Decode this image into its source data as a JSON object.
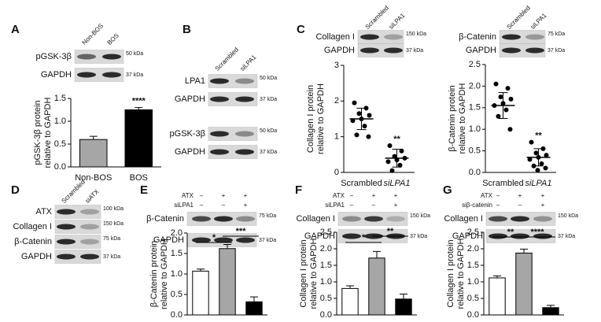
{
  "panel_labels": [
    "A",
    "B",
    "C",
    "D",
    "E",
    "F",
    "G"
  ],
  "blots": [
    {
      "columns": [
        "Non-BOS",
        "BOS"
      ],
      "rows": [
        {
          "label": "pGSK-3β",
          "kda": "50 kDa"
        },
        {
          "label": "GAPDH",
          "kda": "37 kDa"
        }
      ]
    },
    {
      "columns": [
        "Scrambled",
        "siLPA1"
      ],
      "rows": [
        {
          "label": "LPA1",
          "kda": "50 kDa"
        },
        {
          "label": "GAPDH",
          "kda": "37 kDa"
        },
        {
          "label": "pGSK-3β",
          "kda": "50 kDa"
        },
        {
          "label": "GAPDH",
          "kda": "37 kDa"
        }
      ]
    },
    {
      "columns": [
        "Scrambled",
        "siLPA1"
      ],
      "rows": [
        {
          "label": "Collagen I",
          "kda": "150 kDa"
        },
        {
          "label": "GAPDH",
          "kda": "37 kDa"
        }
      ]
    },
    {
      "columns": [
        "Scrambled",
        "siLPA1"
      ],
      "rows": [
        {
          "label": "β-Catenin",
          "kda": "75 kDa"
        },
        {
          "label": "GAPDH",
          "kda": "37 kDa"
        }
      ]
    },
    {
      "columns": [
        "Scrambled",
        "siATX"
      ],
      "rows": [
        {
          "label": "ATX",
          "kda": "100 kDa"
        },
        {
          "label": "Collagen I",
          "kda": "150 kDa"
        },
        {
          "label": "β-Catenin",
          "kda": "75 kDa"
        },
        {
          "label": "GAPDH",
          "kda": "37 kDa"
        }
      ]
    },
    {
      "conditions": [
        {
          "name": "ATX",
          "signs": [
            "–",
            "+",
            "+"
          ]
        },
        {
          "name": "siLPA1",
          "signs": [
            "–",
            "–",
            "+"
          ]
        }
      ],
      "rows": [
        {
          "label": "β-Catenin",
          "kda": "75 kDa"
        },
        {
          "label": "GAPDH",
          "kda": "37 kDa"
        }
      ]
    },
    {
      "conditions": [
        {
          "name": "ATX",
          "signs": [
            "–",
            "+",
            "+"
          ]
        },
        {
          "name": "siLPA1",
          "signs": [
            "–",
            "–",
            "+"
          ]
        }
      ],
      "rows": [
        {
          "label": "Collagen I",
          "kda": "150 kDa"
        },
        {
          "label": "GAPDH",
          "kda": "37 kDa"
        }
      ]
    },
    {
      "conditions": [
        {
          "name": "ATX",
          "signs": [
            "–",
            "+",
            "+"
          ]
        },
        {
          "name": "siβ-catenin",
          "signs": [
            "–",
            "–",
            "+"
          ]
        }
      ],
      "rows": [
        {
          "label": "Collagen I",
          "kda": "150 kDa"
        },
        {
          "label": "GAPDH",
          "kda": "37 kDa"
        }
      ]
    }
  ],
  "chart_data": [
    {
      "type": "bar",
      "ylabel": [
        "pGSK-3β protein",
        "relative to GAPDH"
      ],
      "categories": [
        "Non-BOS",
        "BOS"
      ],
      "values": [
        0.6,
        1.25
      ],
      "errors": [
        0.07,
        0.05
      ],
      "colors": [
        "#a6a6a6",
        "#000000"
      ],
      "ylim": [
        0,
        1.5
      ],
      "yticks": [
        {
          "value": 0,
          "label": "0.0"
        },
        {
          "value": 0.5,
          "label": "0.5"
        },
        {
          "value": 1,
          "label": "1.0"
        },
        {
          "value": 1.5,
          "label": "1.5"
        }
      ],
      "annotations": [
        "****"
      ]
    },
    {
      "type": "dot",
      "ylabel": [
        "Collagen I protein",
        "relative to GAPDH"
      ],
      "categories": [
        "Scrambled",
        "siLPA1"
      ],
      "points": [
        [
          1.95,
          1.8,
          1.65,
          1.6,
          1.5,
          1.45,
          1.3,
          1.05,
          1.0
        ],
        [
          0.75,
          0.6,
          0.45,
          0.4,
          0.35,
          0.3,
          0.2,
          0.05
        ]
      ],
      "means": [
        1.5,
        0.4
      ],
      "sd": [
        0.3,
        0.25
      ],
      "ylim": [
        0,
        3
      ],
      "yticks": [
        0,
        1,
        2,
        3
      ],
      "annotations": [
        "**"
      ]
    },
    {
      "type": "dot",
      "ylabel": [
        "β-Catenin protein",
        "relative to GAPDH"
      ],
      "categories": [
        "Scrambled",
        "siLPA1"
      ],
      "points": [
        [
          2.05,
          1.95,
          1.75,
          1.7,
          1.6,
          1.55,
          1.45,
          1.3,
          1.0
        ],
        [
          0.7,
          0.55,
          0.45,
          0.4,
          0.35,
          0.3,
          0.2,
          0.15,
          0.1,
          0.05
        ]
      ],
      "means": [
        1.55,
        0.35
      ],
      "sd": [
        0.3,
        0.2
      ],
      "ylim": [
        0,
        2.5
      ],
      "yticks": [
        {
          "value": 0,
          "label": "0.0"
        },
        {
          "value": 0.5,
          "label": "0.5"
        },
        {
          "value": 1,
          "label": "1.0"
        },
        {
          "value": 1.5,
          "label": "1.5"
        },
        {
          "value": 2,
          "label": "2.0"
        },
        {
          "value": 2.5,
          "label": "2.5"
        }
      ],
      "annotations": [
        "**"
      ]
    },
    {
      "type": "bar",
      "ylabel": [
        "β-Catenin protein",
        "relative to GAPDH"
      ],
      "categories": [
        null,
        null,
        null
      ],
      "values": [
        1.07,
        1.62,
        0.32
      ],
      "errors": [
        0.05,
        0.1,
        0.12
      ],
      "colors": [
        "#ffffff",
        "#a6a6a6",
        "#000000"
      ],
      "ylim": [
        0,
        2
      ],
      "yticks": [
        {
          "value": 0,
          "label": "0.0"
        },
        {
          "value": 0.5,
          "label": "0.5"
        },
        {
          "value": 1,
          "label": "1.0"
        },
        {
          "value": 1.5,
          "label": "1.5"
        },
        {
          "value": 2,
          "label": "2.0"
        }
      ],
      "annotations": [
        "*",
        "***"
      ]
    },
    {
      "type": "bar",
      "ylabel": [
        "Collagen I protein",
        "relative to GAPDH"
      ],
      "categories": [
        null,
        null,
        null
      ],
      "values": [
        0.8,
        1.72,
        0.48
      ],
      "errors": [
        0.08,
        0.2,
        0.15
      ],
      "colors": [
        "#ffffff",
        "#a6a6a6",
        "#000000"
      ],
      "ylim": [
        0,
        2.5
      ],
      "yticks": [
        {
          "value": 0,
          "label": "0.0"
        },
        {
          "value": 0.5,
          "label": "0.5"
        },
        {
          "value": 1,
          "label": "1.0"
        },
        {
          "value": 1.5,
          "label": "1.5"
        },
        {
          "value": 2,
          "label": "2.0"
        },
        {
          "value": 2.5,
          "label": "2.5"
        }
      ],
      "annotations": [
        "*",
        "**"
      ]
    },
    {
      "type": "bar",
      "ylabel": [
        "Collagen I protein",
        "relative to GAPDH"
      ],
      "categories": [
        null,
        null,
        null
      ],
      "values": [
        1.12,
        1.87,
        0.22
      ],
      "errors": [
        0.06,
        0.12,
        0.07
      ],
      "colors": [
        "#ffffff",
        "#a6a6a6",
        "#000000"
      ],
      "ylim": [
        0,
        2.5
      ],
      "yticks": [
        {
          "value": 0,
          "label": "0.0"
        },
        {
          "value": 0.5,
          "label": "0.5"
        },
        {
          "value": 1,
          "label": "1.0"
        },
        {
          "value": 1.5,
          "label": "1.5"
        },
        {
          "value": 2,
          "label": "2.0"
        },
        {
          "value": 2.5,
          "label": "2.5"
        }
      ],
      "annotations": [
        "**",
        "****"
      ]
    }
  ]
}
